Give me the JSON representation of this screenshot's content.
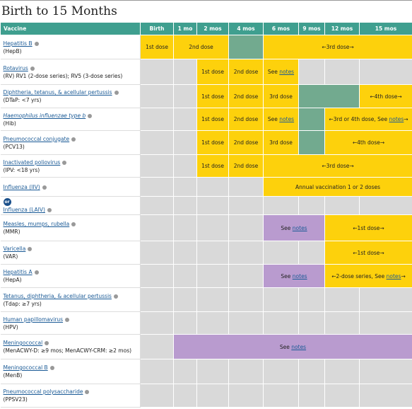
{
  "header": {
    "title": "Birth to 15 Months"
  },
  "table": {
    "columns": [
      "Vaccine",
      "Birth",
      "1 mo",
      "2 mos",
      "4 mos",
      "6 mos",
      "9 mos",
      "12 mos",
      "15 mos"
    ],
    "rows": [
      {
        "name": "Hepatitis B",
        "sub": "(HepB)",
        "cells": [
          {
            "span": 1,
            "fill": "yellow",
            "text": "1st dose"
          },
          {
            "span": 2,
            "fill": "yellow",
            "text": "2nd dose"
          },
          {
            "span": 1,
            "fill": "teal"
          },
          {
            "span": 4,
            "fill": "yellow",
            "text": "←3rd dose→"
          }
        ]
      },
      {
        "name": "Rotavirus",
        "sub": "(RV) RV1 (2-dose series); RV5 (3-dose series)",
        "cells": [
          {
            "span": 1,
            "fill": "gray"
          },
          {
            "span": 1,
            "fill": "gray"
          },
          {
            "span": 1,
            "fill": "yellow",
            "text": "1st dose"
          },
          {
            "span": 1,
            "fill": "yellow",
            "text": "2nd dose"
          },
          {
            "span": 1,
            "fill": "yellow",
            "pre": "See ",
            "link": "notes"
          },
          {
            "span": 1,
            "fill": "gray"
          },
          {
            "span": 1,
            "fill": "gray"
          },
          {
            "span": 1,
            "fill": "gray"
          }
        ]
      },
      {
        "name": "Diphtheria, tetanus, & acellular pertussis",
        "sub": "(DTaP: <7 yrs)",
        "cells": [
          {
            "span": 1,
            "fill": "gray"
          },
          {
            "span": 1,
            "fill": "gray"
          },
          {
            "span": 1,
            "fill": "yellow",
            "text": "1st dose"
          },
          {
            "span": 1,
            "fill": "yellow",
            "text": "2nd dose"
          },
          {
            "span": 1,
            "fill": "yellow",
            "text": "3rd dose"
          },
          {
            "span": 2,
            "fill": "teal"
          },
          {
            "span": 1,
            "fill": "yellow",
            "text": "←4th dose→"
          }
        ]
      },
      {
        "name": "Haemophilus influenzae type b",
        "italic": true,
        "sub": "(Hib)",
        "cells": [
          {
            "span": 1,
            "fill": "gray"
          },
          {
            "span": 1,
            "fill": "gray"
          },
          {
            "span": 1,
            "fill": "yellow",
            "text": "1st dose"
          },
          {
            "span": 1,
            "fill": "yellow",
            "text": "2nd dose"
          },
          {
            "span": 1,
            "fill": "yellow",
            "pre": "See ",
            "link": "notes"
          },
          {
            "span": 1,
            "fill": "teal"
          },
          {
            "span": 2,
            "fill": "yellow",
            "pre": "←3rd or 4th dose, See ",
            "link": "notes",
            "post": "→"
          }
        ]
      },
      {
        "name": "Pneumococcal conjugate",
        "sub": "(PCV13)",
        "cells": [
          {
            "span": 1,
            "fill": "gray"
          },
          {
            "span": 1,
            "fill": "gray"
          },
          {
            "span": 1,
            "fill": "yellow",
            "text": "1st dose"
          },
          {
            "span": 1,
            "fill": "yellow",
            "text": "2nd dose"
          },
          {
            "span": 1,
            "fill": "yellow",
            "text": "3rd dose"
          },
          {
            "span": 1,
            "fill": "teal"
          },
          {
            "span": 2,
            "fill": "yellow",
            "text": "←4th dose→"
          }
        ]
      },
      {
        "name": "Inactivated poliovirus",
        "sub": "(IPV: <18 yrs)",
        "cells": [
          {
            "span": 1,
            "fill": "gray"
          },
          {
            "span": 1,
            "fill": "gray"
          },
          {
            "span": 1,
            "fill": "yellow",
            "text": "1st dose"
          },
          {
            "span": 1,
            "fill": "yellow",
            "text": "2nd dose"
          },
          {
            "span": 4,
            "fill": "yellow",
            "text": "←3rd dose→"
          }
        ]
      },
      {
        "name": "Influenza (IIV)",
        "cells": [
          {
            "span": 1,
            "fill": "gray"
          },
          {
            "span": 1,
            "fill": "gray"
          },
          {
            "span": 1,
            "fill": "gray"
          },
          {
            "span": 1,
            "fill": "gray"
          },
          {
            "span": 4,
            "fill": "yellow",
            "text": "Annual vaccination 1 or 2 doses"
          }
        ]
      },
      {
        "badge": "or",
        "name": "Influenza (LAIV)",
        "cells": [
          {
            "span": 1,
            "fill": "gray"
          },
          {
            "span": 1,
            "fill": "gray"
          },
          {
            "span": 1,
            "fill": "gray"
          },
          {
            "span": 1,
            "fill": "gray"
          },
          {
            "span": 1,
            "fill": "gray"
          },
          {
            "span": 1,
            "fill": "gray"
          },
          {
            "span": 1,
            "fill": "gray"
          },
          {
            "span": 1,
            "fill": "gray"
          }
        ]
      },
      {
        "name": "Measles, mumps, rubella",
        "sub": "(MMR)",
        "cells": [
          {
            "span": 1,
            "fill": "gray"
          },
          {
            "span": 1,
            "fill": "gray"
          },
          {
            "span": 1,
            "fill": "gray"
          },
          {
            "span": 1,
            "fill": "gray"
          },
          {
            "span": 2,
            "fill": "purple",
            "pre": "See ",
            "link": "notes"
          },
          {
            "span": 2,
            "fill": "yellow",
            "text": "←1st dose→"
          }
        ]
      },
      {
        "name": "Varicella",
        "sub": "(VAR)",
        "cells": [
          {
            "span": 1,
            "fill": "gray"
          },
          {
            "span": 1,
            "fill": "gray"
          },
          {
            "span": 1,
            "fill": "gray"
          },
          {
            "span": 1,
            "fill": "gray"
          },
          {
            "span": 1,
            "fill": "gray"
          },
          {
            "span": 1,
            "fill": "gray"
          },
          {
            "span": 2,
            "fill": "yellow",
            "text": "←1st dose→"
          }
        ]
      },
      {
        "name": "Hepatitis A",
        "sub": "(HepA)",
        "cells": [
          {
            "span": 1,
            "fill": "gray"
          },
          {
            "span": 1,
            "fill": "gray"
          },
          {
            "span": 1,
            "fill": "gray"
          },
          {
            "span": 1,
            "fill": "gray"
          },
          {
            "span": 2,
            "fill": "purple",
            "pre": "See ",
            "link": "notes"
          },
          {
            "span": 2,
            "fill": "yellow",
            "pre": "←2-dose series, See ",
            "link": "notes",
            "post": "→"
          }
        ]
      },
      {
        "name": "Tetanus, diphtheria, & acellular pertussis",
        "sub": "(Tdap: ≥7 yrs)",
        "cells": [
          {
            "span": 1,
            "fill": "gray"
          },
          {
            "span": 1,
            "fill": "gray"
          },
          {
            "span": 1,
            "fill": "gray"
          },
          {
            "span": 1,
            "fill": "gray"
          },
          {
            "span": 1,
            "fill": "gray"
          },
          {
            "span": 1,
            "fill": "gray"
          },
          {
            "span": 1,
            "fill": "gray"
          },
          {
            "span": 1,
            "fill": "gray"
          }
        ]
      },
      {
        "name": "Human papillomavirus",
        "sub": "(HPV)",
        "cells": [
          {
            "span": 1,
            "fill": "gray"
          },
          {
            "span": 1,
            "fill": "gray"
          },
          {
            "span": 1,
            "fill": "gray"
          },
          {
            "span": 1,
            "fill": "gray"
          },
          {
            "span": 1,
            "fill": "gray"
          },
          {
            "span": 1,
            "fill": "gray"
          },
          {
            "span": 1,
            "fill": "gray"
          },
          {
            "span": 1,
            "fill": "gray"
          }
        ]
      },
      {
        "name": "Meningococcal",
        "sub": "(MenACWY-D: ≥9 mos; MenACWY-CRM: ≥2 mos)",
        "cells": [
          {
            "span": 1,
            "fill": "gray"
          },
          {
            "span": 7,
            "fill": "purple",
            "pre": "See ",
            "link": "notes"
          }
        ]
      },
      {
        "name": "Meningococcal B",
        "sub": "(MenB)",
        "cells": [
          {
            "span": 1,
            "fill": "gray"
          },
          {
            "span": 1,
            "fill": "gray"
          },
          {
            "span": 1,
            "fill": "gray"
          },
          {
            "span": 1,
            "fill": "gray"
          },
          {
            "span": 1,
            "fill": "gray"
          },
          {
            "span": 1,
            "fill": "gray"
          },
          {
            "span": 1,
            "fill": "gray"
          },
          {
            "span": 1,
            "fill": "gray"
          }
        ]
      },
      {
        "name": "Pneumococcal polysaccharide",
        "sub": "(PPSV23)",
        "cells": [
          {
            "span": 1,
            "fill": "gray"
          },
          {
            "span": 1,
            "fill": "gray"
          },
          {
            "span": 1,
            "fill": "gray"
          },
          {
            "span": 1,
            "fill": "gray"
          },
          {
            "span": 1,
            "fill": "gray"
          },
          {
            "span": 1,
            "fill": "gray"
          },
          {
            "span": 1,
            "fill": "gray"
          },
          {
            "span": 1,
            "fill": "gray"
          }
        ]
      }
    ]
  }
}
